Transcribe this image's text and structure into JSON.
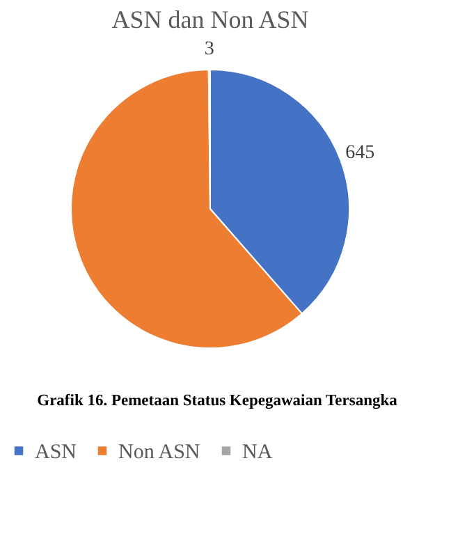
{
  "chart_data": {
    "type": "pie",
    "title": "ASN dan Non ASN",
    "categories": [
      "ASN",
      "Non ASN",
      "NA"
    ],
    "values": [
      645,
      1025,
      3
    ],
    "value_labels": [
      "645",
      null,
      "3"
    ],
    "colors": [
      "#4472c4",
      "#ed7d31",
      "#a5a5a5"
    ],
    "legend": "bottom",
    "annotations": [
      "Grafik 16. Pemetaan Status Kepegawaian Tersangka"
    ]
  }
}
